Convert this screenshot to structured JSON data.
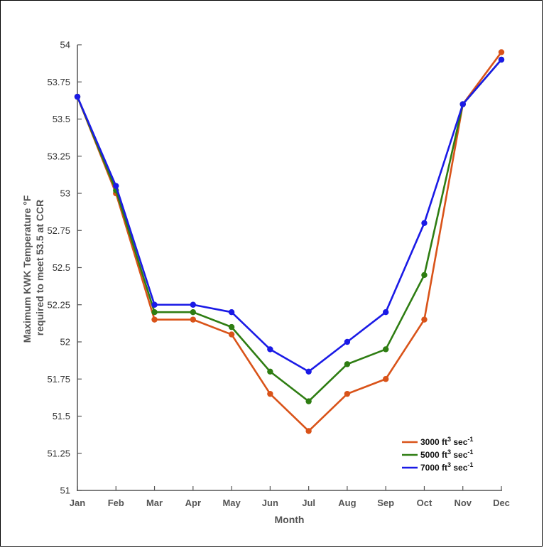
{
  "chart_data": {
    "type": "line",
    "xlabel": "Month",
    "ylabel_line1": "Maximum KWK Temperature °F",
    "ylabel_line2": "required to meet 53.5 at CCR",
    "categories": [
      "Jan",
      "Feb",
      "Mar",
      "Apr",
      "May",
      "Jun",
      "Jul",
      "Aug",
      "Sep",
      "Oct",
      "Nov",
      "Dec"
    ],
    "ylim": [
      51,
      54
    ],
    "yticks": [
      "51",
      "51.25",
      "51.5",
      "51.75",
      "52",
      "52.25",
      "52.5",
      "52.75",
      "53",
      "53.25",
      "53.5",
      "53.75",
      "54"
    ],
    "grid": false,
    "legend_position": "bottom-right",
    "series": [
      {
        "name": "3000 ft³ sec⁻¹",
        "name_base": "3000 ft",
        "name_unit": " sec",
        "color": "#d95319",
        "values": [
          53.65,
          53.0,
          52.15,
          52.15,
          52.05,
          51.65,
          51.4,
          51.65,
          51.75,
          52.15,
          53.6,
          53.95
        ]
      },
      {
        "name": "5000  ft³ sec⁻¹",
        "name_base": "5000  ft",
        "name_unit": " sec",
        "color": "#2e7d12",
        "values": [
          53.65,
          53.02,
          52.2,
          52.2,
          52.1,
          51.8,
          51.6,
          51.85,
          51.95,
          52.45,
          53.6,
          53.9
        ]
      },
      {
        "name": "7000 ft³ sec⁻¹",
        "name_base": "7000 ft",
        "name_unit": " sec",
        "color": "#1a1ae6",
        "values": [
          53.65,
          53.05,
          52.25,
          52.25,
          52.2,
          51.95,
          51.8,
          52.0,
          52.2,
          52.8,
          53.6,
          53.9
        ]
      }
    ]
  }
}
